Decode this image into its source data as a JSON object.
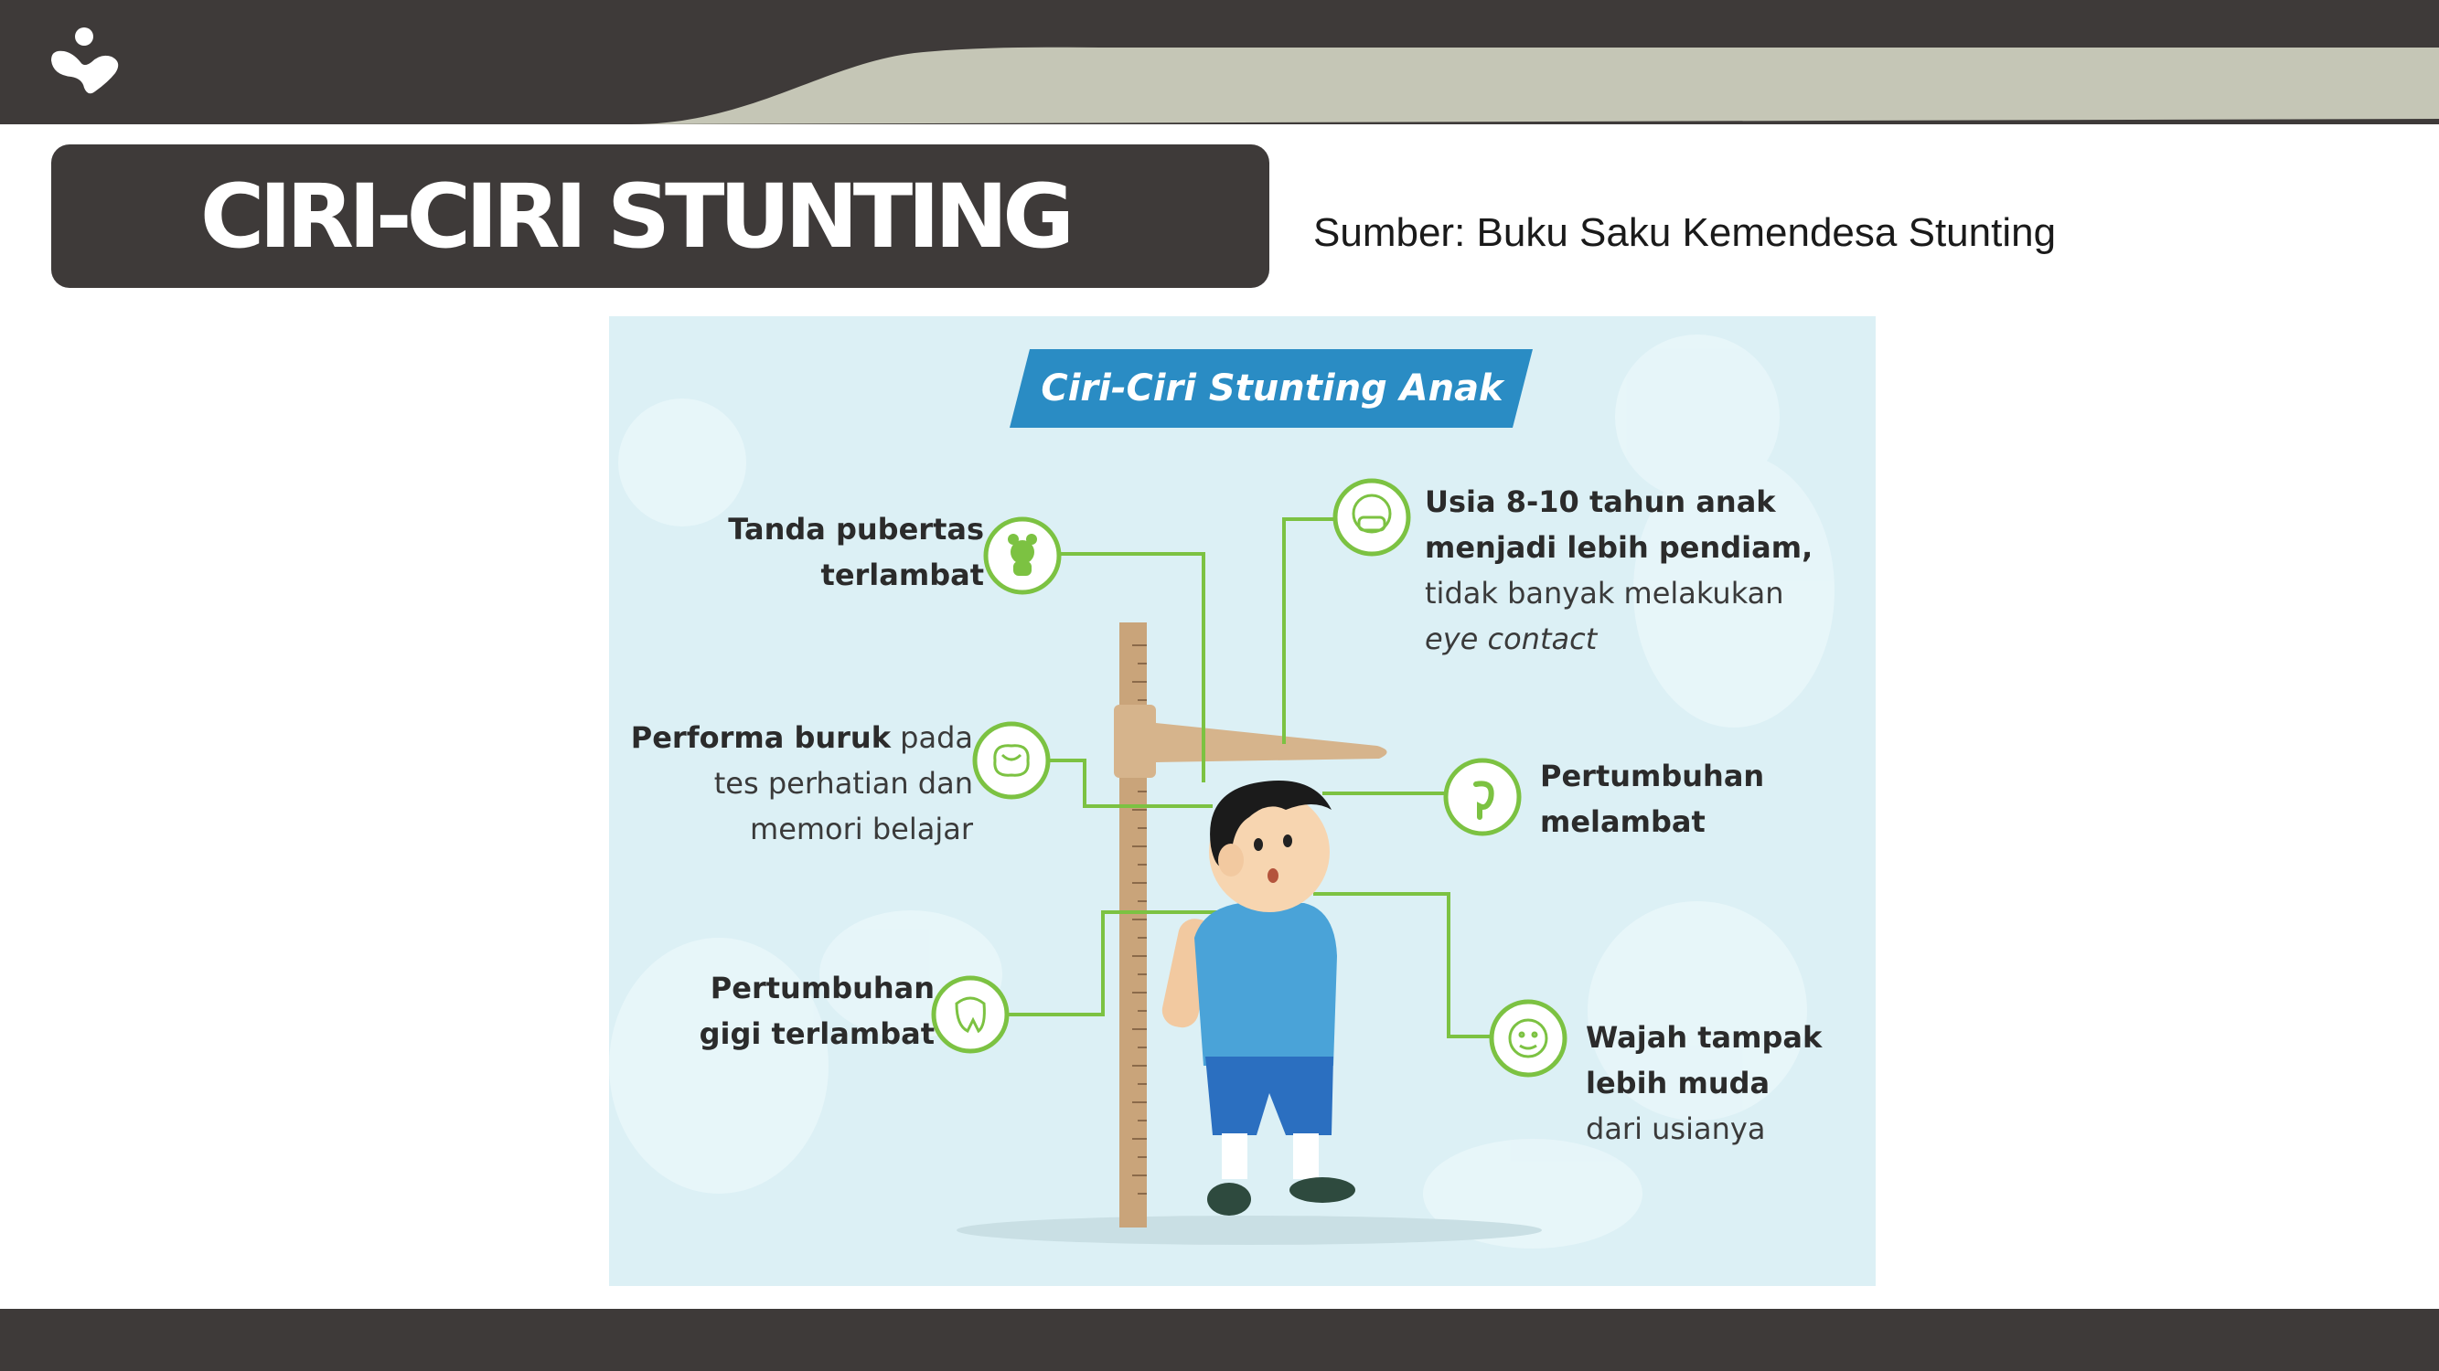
{
  "slide": {
    "title": "CIRI-CIRI STUNTING",
    "source": "Sumber: Buku Saku Kemendesa Stunting"
  },
  "infographic": {
    "banner": "Ciri-Ciri Stunting Anak",
    "items": [
      {
        "id": "puberty",
        "icon": "teddy-bear-icon",
        "bold": [
          "Tanda pubertas",
          "terlambat"
        ],
        "normal": []
      },
      {
        "id": "memory",
        "icon": "brain-icon",
        "bold": [
          "Performa buruk"
        ],
        "normal_after_bold": " pada",
        "normal": [
          "tes perhatian dan",
          "memori belajar"
        ]
      },
      {
        "id": "teeth",
        "icon": "tooth-icon",
        "bold": [
          "Pertumbuhan",
          "gigi terlambat"
        ],
        "normal": []
      },
      {
        "id": "quiet",
        "icon": "child-mask-icon",
        "bold": [
          "Usia 8-10 tahun anak",
          "menjadi lebih pendiam,"
        ],
        "normal": [
          "tidak banyak melakukan",
          "eye contact"
        ]
      },
      {
        "id": "growth",
        "icon": "fetus-icon",
        "bold": [
          "Pertumbuhan",
          "melambat"
        ],
        "normal": []
      },
      {
        "id": "face",
        "icon": "baby-face-icon",
        "bold": [
          "Wajah tampak",
          "lebih muda"
        ],
        "normal": [
          "dari usianya"
        ]
      }
    ]
  },
  "colors": {
    "dark": "#3e3a39",
    "band_light": "#c5c6b6",
    "infographic_bg": "#dcf0f5",
    "banner_blue": "#2a8cc4",
    "accent_green": "#7cc242"
  }
}
